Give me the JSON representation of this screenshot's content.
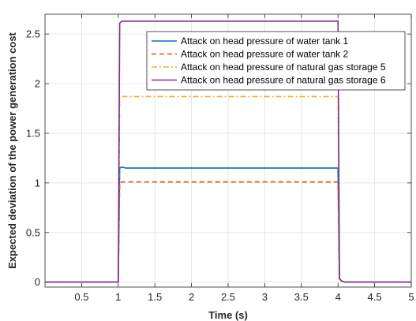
{
  "chart_data": {
    "type": "line",
    "title": "",
    "xlabel": "Time (s)",
    "ylabel": "Expected deviation of the power generation cost",
    "xlim": [
      0,
      5
    ],
    "ylim": [
      -0.05,
      2.7
    ],
    "xticks": [
      0.5,
      1,
      1.5,
      2,
      2.5,
      3,
      3.5,
      4,
      4.5,
      5
    ],
    "xtick_labels": [
      "0.5",
      "1",
      "1.5",
      "2",
      "2.5",
      "3",
      "3.5",
      "4",
      "4.5",
      "5"
    ],
    "yticks": [
      0,
      0.5,
      1,
      1.5,
      2,
      2.5
    ],
    "ytick_labels": [
      "0",
      "0.5",
      "1",
      "1.5",
      "2",
      "2.5"
    ],
    "grid": true,
    "legend_position": "top-right",
    "series": [
      {
        "name": "Attack on head pressure of water tank 1",
        "color": "#0072BD",
        "line_style": "solid",
        "x": [
          0,
          1.0,
          1.02,
          1.05,
          1.1,
          4.0,
          4.02,
          4.05,
          4.1,
          5.0
        ],
        "y": [
          0,
          0,
          1.15,
          1.16,
          1.15,
          1.15,
          0.03,
          0.01,
          0,
          0
        ]
      },
      {
        "name": "Attack on head pressure of water tank 2",
        "color": "#D95319",
        "line_style": "dashed",
        "x": [
          0,
          1.0,
          1.02,
          1.05,
          4.0,
          4.02,
          4.05,
          4.1,
          5.0
        ],
        "y": [
          0,
          0,
          1.0,
          1.01,
          1.01,
          0.03,
          0.01,
          0,
          0
        ]
      },
      {
        "name": "Attack on head pressure of natural gas storage 5",
        "color": "#EDB120",
        "line_style": "dashdot",
        "x": [
          0,
          1.0,
          1.02,
          1.05,
          4.0,
          4.02,
          4.05,
          4.1,
          5.0
        ],
        "y": [
          0,
          0,
          1.86,
          1.87,
          1.87,
          0.03,
          0.01,
          0,
          0
        ]
      },
      {
        "name": "Attack on head pressure of natural gas storage 6",
        "color": "#7E2F8E",
        "line_style": "solid",
        "x": [
          0,
          1.0,
          1.02,
          1.05,
          1.1,
          4.0,
          4.02,
          4.05,
          4.1,
          5.0
        ],
        "y": [
          0,
          0,
          2.61,
          2.63,
          2.63,
          2.63,
          0.04,
          0.01,
          0,
          0
        ]
      }
    ]
  }
}
